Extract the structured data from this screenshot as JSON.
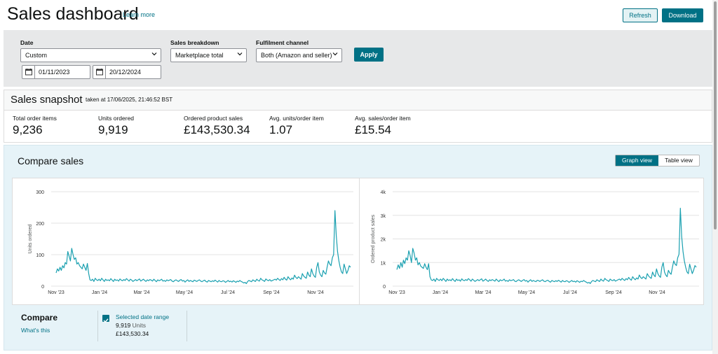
{
  "header": {
    "title": "Sales dashboard",
    "learn_more": "Learn more",
    "refresh_label": "Refresh",
    "download_label": "Download"
  },
  "filters": {
    "date_label": "Date",
    "date_value": "Custom",
    "start_date": "01/11/2023",
    "end_date": "20/12/2024",
    "breakdown_label": "Sales breakdown",
    "breakdown_value": "Marketplace total",
    "channel_label": "Fulfilment channel",
    "channel_value": "Both (Amazon and seller)",
    "apply_label": "Apply"
  },
  "snapshot": {
    "title": "Sales snapshot",
    "taken": "taken at 17/06/2025, 21:46:52 BST",
    "metrics": [
      {
        "label": "Total order items",
        "value": "9,236"
      },
      {
        "label": "Units ordered",
        "value": "9,919"
      },
      {
        "label": "Ordered product sales",
        "value": "£143,530.34"
      },
      {
        "label": "Avg. units/order item",
        "value": "1.07"
      },
      {
        "label": "Avg. sales/order item",
        "value": "£15.54"
      }
    ]
  },
  "compare": {
    "title": "Compare sales",
    "graph_view": "Graph view",
    "table_view": "Table view",
    "footer_title": "Compare",
    "whats_this": "What's this",
    "legend_label": "Selected date range",
    "legend_units_value": "9,919",
    "legend_units_word": "Units",
    "legend_sales": "£143,530.34"
  },
  "colors": {
    "accent": "#007185",
    "line": "#1aa0b0",
    "filter_bg": "#e7e8e9",
    "compare_bg": "#e6f3f8"
  },
  "chart_data": [
    {
      "type": "line",
      "ylabel": "Units ordered",
      "xlabel": "",
      "ylim": [
        0,
        300
      ],
      "yticks": [
        "0",
        "100",
        "200",
        "300"
      ],
      "xticks": [
        "Nov '23",
        "Jan '24",
        "Mar '24",
        "May '24",
        "Jul '24",
        "Sep '24",
        "Nov '24"
      ],
      "grid": true,
      "series": [
        {
          "x_start": "2023-11-01",
          "x_end": "2024-12-20",
          "values": [
            42,
            55,
            48,
            60,
            50,
            65,
            58,
            75,
            70,
            110,
            95,
            80,
            120,
            100,
            85,
            90,
            70,
            75,
            65,
            60,
            55,
            70,
            60,
            50,
            72,
            40,
            20,
            18,
            22,
            15,
            25,
            20,
            18,
            22,
            17,
            25,
            20,
            15,
            22,
            18,
            20,
            17,
            24,
            19,
            15,
            22,
            18,
            20,
            16,
            23,
            19,
            17,
            21,
            18,
            24,
            20,
            16,
            22,
            19,
            15,
            18,
            21,
            17,
            20,
            23,
            16,
            19,
            22,
            18,
            15,
            20,
            17,
            21,
            19,
            16,
            22,
            18,
            14,
            20,
            17,
            19,
            22,
            16,
            18,
            15,
            20,
            17,
            19,
            21,
            16,
            14,
            18,
            20,
            17,
            15,
            19,
            21,
            16,
            18,
            13,
            17,
            20,
            15,
            18,
            16,
            14,
            19,
            17,
            15,
            18,
            20,
            16,
            14,
            17,
            19,
            15,
            13,
            18,
            16,
            14,
            17,
            15,
            19,
            16,
            13,
            18,
            15,
            14,
            17,
            16,
            12,
            15,
            18,
            14,
            16,
            13,
            17,
            15,
            12,
            16,
            14,
            18,
            15,
            13,
            10,
            12,
            8,
            15,
            18,
            16,
            14,
            20,
            17,
            15,
            22,
            18,
            16,
            25,
            20,
            18,
            15,
            23,
            19,
            17,
            21,
            16,
            18,
            20,
            22,
            19,
            25,
            21,
            18,
            24,
            20,
            28,
            22,
            19,
            30,
            24,
            20,
            26,
            22,
            35,
            28,
            24,
            30,
            26,
            22,
            40,
            32,
            28,
            25,
            45,
            35,
            30,
            55,
            40,
            32,
            28,
            60,
            75,
            45,
            35,
            30,
            50,
            42,
            38,
            60,
            80,
            70,
            65,
            90,
            100,
            240,
            160,
            110,
            80,
            60,
            45,
            40,
            70,
            55,
            40,
            50,
            65,
            60
          ]
        }
      ]
    },
    {
      "type": "line",
      "ylabel": "Ordered product sales",
      "xlabel": "",
      "ylim": [
        0,
        4000
      ],
      "yticks": [
        "0",
        "1k",
        "2k",
        "3k",
        "4k"
      ],
      "xticks": [
        "Nov '23",
        "Jan '24",
        "Mar '24",
        "May '24",
        "Jul '24",
        "Sep '24",
        "Nov '24"
      ],
      "grid": true,
      "series": [
        {
          "x_start": "2023-11-01",
          "x_end": "2024-12-20",
          "values": [
            700,
            900,
            750,
            1000,
            800,
            1100,
            950,
            1200,
            1100,
            1500,
            1300,
            1000,
            1600,
            1400,
            1100,
            1200,
            900,
            1000,
            850,
            800,
            750,
            950,
            800,
            700,
            950,
            400,
            260,
            240,
            300,
            200,
            330,
            270,
            240,
            300,
            230,
            330,
            270,
            200,
            300,
            240,
            270,
            230,
            320,
            250,
            200,
            300,
            240,
            270,
            210,
            310,
            250,
            230,
            280,
            240,
            320,
            270,
            210,
            300,
            250,
            200,
            240,
            280,
            230,
            270,
            310,
            210,
            250,
            300,
            240,
            200,
            270,
            230,
            280,
            250,
            210,
            300,
            240,
            190,
            270,
            230,
            250,
            300,
            210,
            240,
            200,
            270,
            230,
            250,
            280,
            210,
            190,
            240,
            270,
            230,
            200,
            250,
            280,
            210,
            240,
            170,
            230,
            270,
            200,
            240,
            210,
            190,
            250,
            230,
            200,
            240,
            270,
            210,
            190,
            230,
            250,
            200,
            170,
            240,
            210,
            190,
            230,
            200,
            250,
            210,
            170,
            240,
            200,
            190,
            230,
            210,
            160,
            200,
            240,
            190,
            210,
            170,
            230,
            200,
            160,
            210,
            190,
            240,
            200,
            170,
            130,
            160,
            110,
            200,
            240,
            210,
            190,
            270,
            230,
            200,
            300,
            240,
            210,
            330,
            270,
            240,
            200,
            300,
            250,
            230,
            280,
            210,
            240,
            270,
            300,
            250,
            330,
            280,
            240,
            320,
            270,
            370,
            300,
            250,
            400,
            320,
            270,
            350,
            300,
            470,
            370,
            320,
            400,
            350,
            300,
            530,
            430,
            370,
            330,
            600,
            470,
            400,
            730,
            530,
            430,
            370,
            800,
            1000,
            600,
            470,
            400,
            670,
            560,
            500,
            800,
            1070,
            930,
            870,
            1200,
            1350,
            3300,
            2100,
            1470,
            1070,
            800,
            600,
            530,
            930,
            730,
            530,
            670,
            870,
            800
          ]
        }
      ]
    }
  ]
}
